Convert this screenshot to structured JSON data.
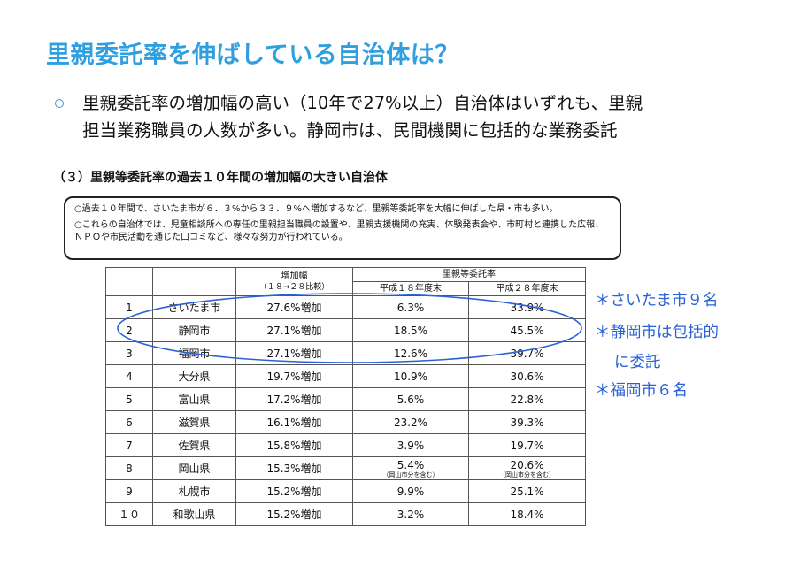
{
  "title": "里親委託率を伸ばしている自治体は？",
  "bullet": {
    "line1": "里親委託率の増加幅の高い（10年で27%以上）自治体はいずれも、里親",
    "line2": "担当業務職員の人数が多い。静岡市は、民間機関に包括的な業務委託"
  },
  "section_heading": "（３）里親等委託率の過去１０年間の増加幅の大きい自治体",
  "box": {
    "p1": "○過去１０年間で、さいたま市が６．３%から３３．９%へ増加するなど、里親等委託率を大幅に伸ばした県・市も多い。",
    "p2": "○これらの自治体では、児童相談所への専任の里親担当職員の設置や、里親支援機関の充実、体験発表会や、市町村と連携した広報、ＮＰＯや市民活動を通じた口コミなど、様々な努力が行われている。"
  },
  "table": {
    "header": {
      "increase": "増加幅",
      "increase_sub": "（１８→２８比較）",
      "rate": "里親等委託率",
      "h18": "平成１８年度末",
      "h28": "平成２８年度末"
    },
    "rows": [
      {
        "rank": "1",
        "name": "さいたま市",
        "increase": "27.6%増加",
        "h18": "6.3%",
        "h28": "33.9%",
        "note18": "",
        "note28": ""
      },
      {
        "rank": "2",
        "name": "静岡市",
        "increase": "27.1%増加",
        "h18": "18.5%",
        "h28": "45.5%",
        "note18": "",
        "note28": ""
      },
      {
        "rank": "3",
        "name": "福岡市",
        "increase": "27.1%増加",
        "h18": "12.6%",
        "h28": "39.7%",
        "note18": "",
        "note28": ""
      },
      {
        "rank": "4",
        "name": "大分県",
        "increase": "19.7%増加",
        "h18": "10.9%",
        "h28": "30.6%",
        "note18": "",
        "note28": ""
      },
      {
        "rank": "5",
        "name": "富山県",
        "increase": "17.2%増加",
        "h18": "5.6%",
        "h28": "22.8%",
        "note18": "",
        "note28": ""
      },
      {
        "rank": "6",
        "name": "滋賀県",
        "increase": "16.1%増加",
        "h18": "23.2%",
        "h28": "39.3%",
        "note18": "",
        "note28": ""
      },
      {
        "rank": "7",
        "name": "佐賀県",
        "increase": "15.8%増加",
        "h18": "3.9%",
        "h28": "19.7%",
        "note18": "",
        "note28": ""
      },
      {
        "rank": "8",
        "name": "岡山県",
        "increase": "15.3%増加",
        "h18": "5.4%",
        "h28": "20.6%",
        "note18": "（岡山市分を含む）",
        "note28": "（岡山市分を含む）"
      },
      {
        "rank": "9",
        "name": "札幌市",
        "increase": "15.2%増加",
        "h18": "9.9%",
        "h28": "25.1%",
        "note18": "",
        "note28": ""
      },
      {
        "rank": "１０",
        "name": "和歌山県",
        "increase": "15.2%増加",
        "h18": "3.2%",
        "h28": "18.4%",
        "note18": "",
        "note28": ""
      }
    ]
  },
  "notes": {
    "n1": "＊さいたま市９名",
    "n2": "＊静岡市は包括的",
    "n3": "に委託",
    "n4": "＊福岡市６名"
  },
  "colors": {
    "title": "#2f9fe0",
    "annotation": "#2a62d6"
  }
}
